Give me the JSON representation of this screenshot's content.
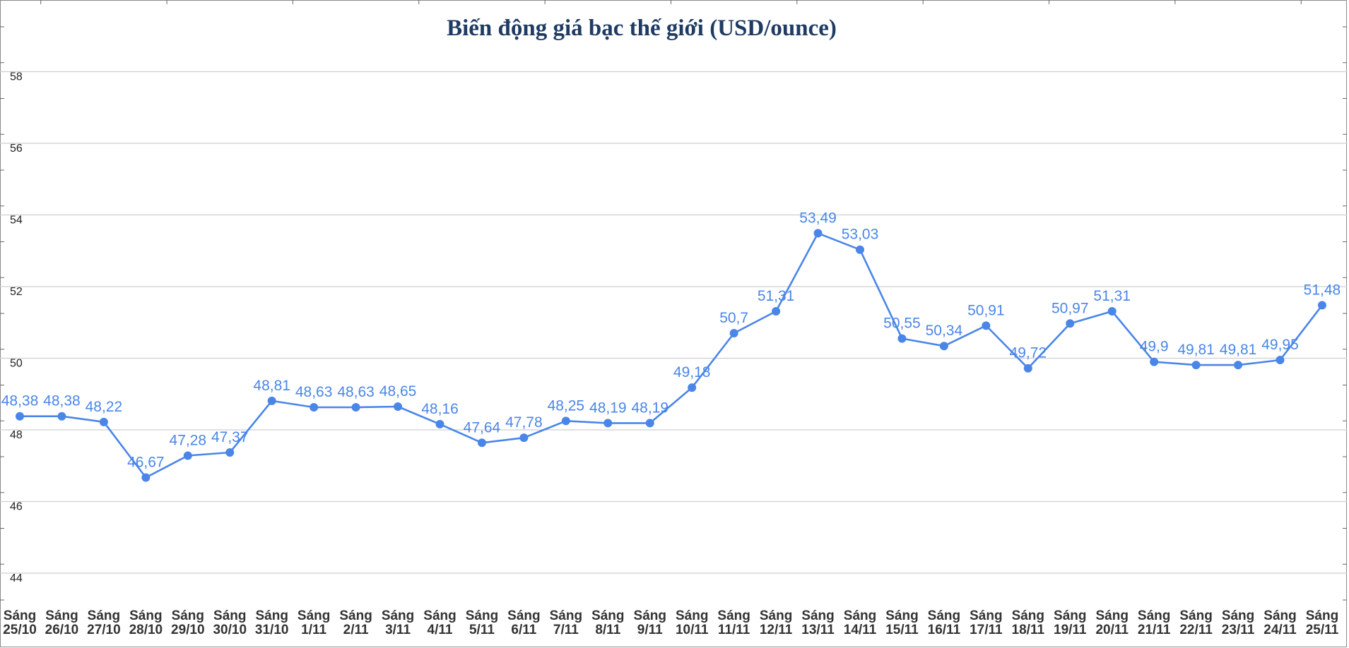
{
  "chart_data": {
    "type": "line",
    "title": "Biến động giá bạc thế giới (USD/ounce)",
    "xlabel": "",
    "ylabel": "",
    "ylim": [
      44,
      58
    ],
    "yticks": [
      "44",
      "46",
      "48",
      "50",
      "52",
      "54",
      "56",
      "58"
    ],
    "grid": true,
    "color": "#4a86e8",
    "categories": [
      "Sáng\n25/10",
      "Sáng\n26/10",
      "Sáng\n27/10",
      "Sáng\n28/10",
      "Sáng\n29/10",
      "Sáng\n30/10",
      "Sáng\n31/10",
      "Sáng\n1/11",
      "Sáng\n2/11",
      "Sáng\n3/11",
      "Sáng\n4/11",
      "Sáng\n5/11",
      "Sáng\n6/11",
      "Sáng\n7/11",
      "Sáng\n8/11",
      "Sáng\n9/11",
      "Sáng\n10/11",
      "Sáng\n11/11",
      "Sáng\n12/11",
      "Sáng\n13/11",
      "Sáng\n14/11",
      "Sáng\n15/11",
      "Sáng\n16/11",
      "Sáng\n17/11",
      "Sáng\n18/11",
      "Sáng\n19/11",
      "Sáng\n20/11",
      "Sáng\n21/11",
      "Sáng\n22/11",
      "Sáng\n23/11",
      "Sáng\n24/11",
      "Sáng\n25/11"
    ],
    "values": [
      48.38,
      48.38,
      48.22,
      46.67,
      47.28,
      47.37,
      48.81,
      48.63,
      48.63,
      48.65,
      48.16,
      47.64,
      47.78,
      48.25,
      48.19,
      48.19,
      49.18,
      50.7,
      51.31,
      53.49,
      53.03,
      50.55,
      50.34,
      50.91,
      49.72,
      50.97,
      51.31,
      49.9,
      49.81,
      49.81,
      49.95,
      51.48
    ],
    "data_labels": [
      "48,38",
      "48,38",
      "48,22",
      "46,67",
      "47,28",
      "47,37",
      "48,81",
      "48,63",
      "48,63",
      "48,65",
      "48,16",
      "47,64",
      "47,78",
      "48,25",
      "48,19",
      "48,19",
      "49,18",
      "50,7",
      "51,31",
      "53,49",
      "53,03",
      "50,55",
      "50,34",
      "50,91",
      "49,72",
      "50,97",
      "51,31",
      "49,9",
      "49,81",
      "49,81",
      "49,95",
      "51,48"
    ]
  }
}
